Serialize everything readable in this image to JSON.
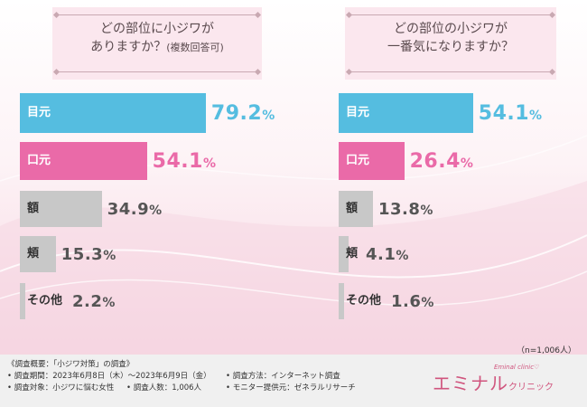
{
  "colors": {
    "eye": "#55bde0",
    "mouth": "#ea6aa8",
    "other": "#c8c8c8",
    "value_eye": "#55bde0",
    "value_mouth": "#ea6aa8",
    "value_other": "#555555"
  },
  "chart_data": [
    {
      "type": "bar",
      "orientation": "horizontal",
      "title": "どの部位に小ジワがありますか？(複数回答可)",
      "title_line1": "どの部位に小ジワが",
      "title_line2": "ありますか？",
      "title_suffix": "(複数回答可)",
      "categories": [
        "目元",
        "口元",
        "額",
        "頬",
        "その他"
      ],
      "values": [
        79.2,
        54.1,
        34.9,
        15.3,
        2.2
      ],
      "value_labels": [
        "79.2%",
        "54.1%",
        "34.9%",
        "15.3%",
        "2.2%"
      ],
      "unit": "%",
      "xlim": [
        0,
        100
      ]
    },
    {
      "type": "bar",
      "orientation": "horizontal",
      "title": "どの部位の小ジワが一番気になりますか？",
      "title_line1": "どの部位の小ジワが",
      "title_line2": "一番気になりますか？",
      "title_suffix": "",
      "categories": [
        "目元",
        "口元",
        "額",
        "頬",
        "その他"
      ],
      "values": [
        54.1,
        26.4,
        13.8,
        4.1,
        1.6
      ],
      "value_labels": [
        "54.1%",
        "26.4%",
        "13.8%",
        "4.1%",
        "1.6%"
      ],
      "unit": "%",
      "xlim": [
        0,
        100
      ]
    }
  ],
  "sample_note": "（n=1,006人）",
  "footer": {
    "line1": "《調査概要：「小ジワ対策」の調査》",
    "period": "• 調査期間：2023年6月8日（木）～2023年6月9日（金）",
    "method": "• 調査方法：インターネット調査",
    "target": "• 調査対象：小ジワに悩む女性",
    "count": "• 調査人数：1,006人",
    "provider": "• モニター提供元：ゼネラルリサーチ"
  },
  "logo": {
    "main": "エミナル",
    "sub": "クリニック",
    "script": "Eminal clinic♡"
  }
}
